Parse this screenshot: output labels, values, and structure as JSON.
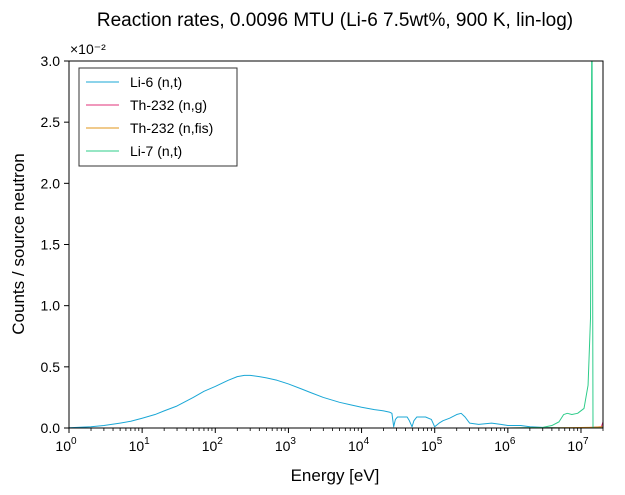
{
  "chart_data": {
    "type": "line",
    "title": "Reaction rates, 0.0096 MTU (Li-6 7.5wt%, 900 K, lin-log)",
    "xlabel": "Energy [eV]",
    "ylabel": "Counts / source neutron",
    "x_scale": "log",
    "y_scale": "linear",
    "xlim": [
      1,
      20000000
    ],
    "ylim": [
      0,
      0.03
    ],
    "y_offset_text": "×10⁻²",
    "x_ticks": [
      {
        "value": 1,
        "base": "10",
        "exp": "0"
      },
      {
        "value": 10,
        "base": "10",
        "exp": "1"
      },
      {
        "value": 100,
        "base": "10",
        "exp": "2"
      },
      {
        "value": 1000,
        "base": "10",
        "exp": "3"
      },
      {
        "value": 10000,
        "base": "10",
        "exp": "4"
      },
      {
        "value": 100000,
        "base": "10",
        "exp": "5"
      },
      {
        "value": 1000000,
        "base": "10",
        "exp": "6"
      },
      {
        "value": 10000000,
        "base": "10",
        "exp": "7"
      }
    ],
    "y_ticks": [
      {
        "value": 0,
        "label": "0.0"
      },
      {
        "value": 0.005,
        "label": "0.5"
      },
      {
        "value": 0.01,
        "label": "1.0"
      },
      {
        "value": 0.015,
        "label": "1.5"
      },
      {
        "value": 0.02,
        "label": "2.0"
      },
      {
        "value": 0.025,
        "label": "2.5"
      },
      {
        "value": 0.03,
        "label": "3.0"
      }
    ],
    "legend_position": "upper-left",
    "grid": false,
    "series": [
      {
        "name": "Li-6 (n,t)",
        "color": "#1aa7d6",
        "points": [
          [
            1,
            2e-05
          ],
          [
            2,
            0.0001
          ],
          [
            3,
            0.0002
          ],
          [
            5,
            0.0004
          ],
          [
            7,
            0.00055
          ],
          [
            10,
            0.0008
          ],
          [
            15,
            0.0011
          ],
          [
            20,
            0.0014
          ],
          [
            30,
            0.0018
          ],
          [
            50,
            0.0025
          ],
          [
            70,
            0.003
          ],
          [
            100,
            0.0034
          ],
          [
            150,
            0.0039
          ],
          [
            200,
            0.0042
          ],
          [
            250,
            0.0043
          ],
          [
            300,
            0.0043
          ],
          [
            400,
            0.0042
          ],
          [
            500,
            0.0041
          ],
          [
            700,
            0.0039
          ],
          [
            1000,
            0.0036
          ],
          [
            1500,
            0.0032
          ],
          [
            2000,
            0.0029
          ],
          [
            3000,
            0.0025
          ],
          [
            5000,
            0.0021
          ],
          [
            7000,
            0.0019
          ],
          [
            10000,
            0.0017
          ],
          [
            15000,
            0.0015
          ],
          [
            20000,
            0.0014
          ],
          [
            24000,
            0.0013
          ],
          [
            26000,
            0.0012
          ],
          [
            27500,
            0.0001
          ],
          [
            29000,
            0.0007
          ],
          [
            31000,
            0.0009
          ],
          [
            35000,
            0.0009
          ],
          [
            42000,
            0.0009
          ],
          [
            45000,
            0.0006
          ],
          [
            49000,
            0.0001
          ],
          [
            52000,
            0.0006
          ],
          [
            57000,
            0.0009
          ],
          [
            65000,
            0.0009
          ],
          [
            75000,
            0.0009
          ],
          [
            90000,
            0.0007
          ],
          [
            100000,
            0.0001
          ],
          [
            115000,
            0.0004
          ],
          [
            130000,
            0.0006
          ],
          [
            160000,
            0.0008
          ],
          [
            200000,
            0.0011
          ],
          [
            230000,
            0.0012
          ],
          [
            260000,
            0.0009
          ],
          [
            300000,
            0.0004
          ],
          [
            400000,
            0.0003
          ],
          [
            600000,
            0.0004
          ],
          [
            800000,
            0.0003
          ],
          [
            1000000,
            0.0002
          ],
          [
            1500000,
            0.0002
          ],
          [
            2000000,
            0.0001
          ],
          [
            3000000,
            5e-05
          ],
          [
            5000000,
            2e-05
          ],
          [
            10000000,
            1e-05
          ],
          [
            20000000,
            1e-05
          ]
        ]
      },
      {
        "name": "Th-232 (n,g)",
        "color": "#e0307a",
        "points": [
          [
            1,
            0.0
          ],
          [
            100,
            0.0
          ],
          [
            10000,
            0.0
          ],
          [
            1000000,
            0.0
          ],
          [
            10000000,
            0.0
          ],
          [
            19000000,
            0.0001
          ],
          [
            20000000,
            0.0005
          ]
        ]
      },
      {
        "name": "Th-232 (n,fis)",
        "color": "#e0951a",
        "points": [
          [
            1,
            0.0
          ],
          [
            100,
            0.0
          ],
          [
            10000,
            0.0
          ],
          [
            1000000,
            0.0
          ],
          [
            5000000,
            2e-05
          ],
          [
            10000000,
            4e-05
          ],
          [
            15000000,
            6e-05
          ],
          [
            20000000,
            0.0001
          ]
        ]
      },
      {
        "name": "Li-7 (n,t)",
        "color": "#2ecc8a",
        "points": [
          [
            1,
            0.0
          ],
          [
            100,
            0.0
          ],
          [
            10000,
            0.0
          ],
          [
            1000000,
            0.0
          ],
          [
            3000000,
            5e-05
          ],
          [
            4000000,
            0.0002
          ],
          [
            5000000,
            0.0005
          ],
          [
            5800000,
            0.0011
          ],
          [
            6500000,
            0.0012
          ],
          [
            7500000,
            0.0011
          ],
          [
            9000000,
            0.0012
          ],
          [
            11000000,
            0.0016
          ],
          [
            12500000,
            0.0035
          ],
          [
            13500000,
            0.009
          ],
          [
            14000000,
            0.03
          ],
          [
            14200000,
            0.03
          ],
          [
            14600000,
            2e-05
          ],
          [
            20000000,
            0.0
          ]
        ]
      }
    ]
  }
}
